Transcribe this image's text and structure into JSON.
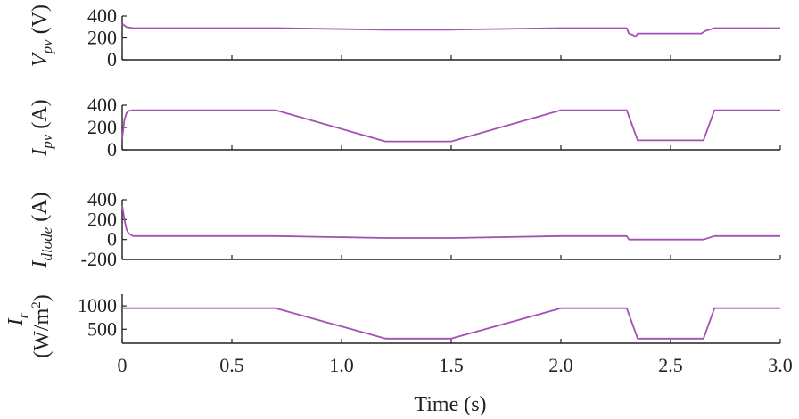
{
  "chart_data": {
    "type": "line",
    "line_color": "#a450b4",
    "shared_x": {
      "label": "Time (s)",
      "range": [
        0,
        3.0
      ],
      "ticks": [
        0,
        0.5,
        1.0,
        1.5,
        2.0,
        2.5,
        3.0
      ],
      "tick_labels": [
        "0",
        "0.5",
        "1.0",
        "1.5",
        "2.0",
        "2.5",
        "3.0"
      ]
    },
    "panels": [
      {
        "id": "vpv",
        "ylabel": {
          "sym": "V",
          "sub": "pv",
          "unit": " (V)"
        },
        "ylim": [
          0,
          400
        ],
        "yticks": [
          0,
          200,
          400
        ],
        "ytick_labels": [
          "0",
          "200",
          "400"
        ],
        "x": [
          0,
          0.02,
          0.05,
          0.7,
          1.2,
          1.5,
          2.0,
          2.3,
          2.31,
          2.33,
          2.34,
          2.35,
          2.64,
          2.66,
          2.7,
          3.0
        ],
        "y": [
          330,
          300,
          290,
          290,
          275,
          275,
          290,
          290,
          240,
          225,
          210,
          240,
          240,
          265,
          290,
          290
        ]
      },
      {
        "id": "ipv",
        "ylabel": {
          "sym": "I",
          "sub": "pv",
          "unit": " (A)"
        },
        "ylim": [
          0,
          400
        ],
        "yticks": [
          0,
          200,
          400
        ],
        "ytick_labels": [
          "0",
          "200",
          "400"
        ],
        "x": [
          0,
          0.01,
          0.02,
          0.03,
          0.05,
          0.7,
          1.2,
          1.5,
          2.0,
          2.3,
          2.35,
          2.65,
          2.7,
          3.0
        ],
        "y": [
          100,
          270,
          330,
          350,
          355,
          355,
          75,
          75,
          355,
          355,
          85,
          85,
          355,
          355
        ]
      },
      {
        "id": "idiode",
        "ylabel": {
          "sym": "I",
          "sub": "diode",
          "unit": " (A)"
        },
        "ylim": [
          -200,
          400
        ],
        "yticks": [
          -200,
          0,
          200,
          400
        ],
        "ytick_labels": [
          "-200",
          "0",
          "200",
          "400"
        ],
        "x": [
          0,
          0.01,
          0.02,
          0.03,
          0.05,
          0.7,
          1.2,
          1.5,
          2.0,
          2.3,
          2.31,
          2.65,
          2.7,
          3.0
        ],
        "y": [
          340,
          200,
          100,
          60,
          35,
          35,
          15,
          15,
          35,
          35,
          0,
          0,
          35,
          35
        ]
      },
      {
        "id": "ir",
        "ylabel": {
          "sym": "I",
          "sub": "r",
          "unit": "(W/m",
          "sup": "2",
          "unit_end": ")"
        },
        "ylim": [
          200,
          1250
        ],
        "yticks": [
          500,
          1000
        ],
        "ytick_labels": [
          "500",
          "1000"
        ],
        "x": [
          0,
          0.7,
          1.2,
          1.5,
          2.0,
          2.3,
          2.35,
          2.65,
          2.7,
          3.0
        ],
        "y": [
          950,
          950,
          300,
          300,
          950,
          950,
          300,
          300,
          950,
          950
        ]
      }
    ]
  }
}
